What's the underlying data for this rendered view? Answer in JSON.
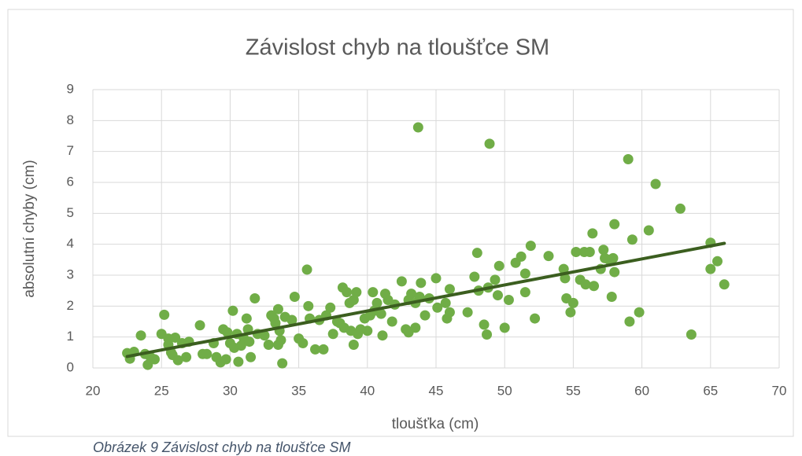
{
  "chart_data": {
    "type": "scatter",
    "title": "Závislost chyb na tloušťce SM",
    "xlabel": "tloušťka (cm)",
    "ylabel": "absolutní chyby (cm)",
    "xlim": [
      20,
      70
    ],
    "xticks": [
      20,
      25,
      30,
      35,
      40,
      45,
      50,
      55,
      60,
      65,
      70
    ],
    "ylim": [
      0,
      9
    ],
    "yticks": [
      0,
      1,
      2,
      3,
      4,
      5,
      6,
      7,
      8,
      9
    ],
    "grid": true,
    "color": "#70ad47",
    "x": [
      22.5,
      22.7,
      23,
      23.5,
      23.8,
      24,
      24.2,
      24.5,
      25,
      25.2,
      25.5,
      25.5,
      25.7,
      25.8,
      26,
      26.2,
      26.5,
      26.8,
      27,
      27.8,
      28,
      28.3,
      28.8,
      29,
      29.3,
      29.5,
      29.7,
      29.8,
      30,
      30.2,
      30.3,
      30.5,
      30.6,
      30.8,
      31,
      31.2,
      31.3,
      31.5,
      31.4,
      31.8,
      32,
      32.5,
      32.8,
      33,
      33.2,
      33.3,
      33.5,
      33.5,
      33.6,
      33.7,
      33.8,
      34,
      34.5,
      34.7,
      35,
      35.3,
      35.6,
      35.7,
      35.8,
      36.2,
      36.5,
      36.8,
      37,
      37.3,
      37.5,
      37.8,
      38,
      38.2,
      38.3,
      38.5,
      38.7,
      38.8,
      39,
      39,
      39.2,
      39.3,
      39.5,
      39.8,
      40,
      40.2,
      40.4,
      40.5,
      40.7,
      41,
      41.1,
      41.3,
      41.5,
      41.8,
      42,
      42.5,
      42.8,
      43,
      43,
      43.2,
      43.5,
      43.5,
      43.7,
      43.8,
      43.9,
      44.2,
      44.5,
      45,
      45.1,
      45.7,
      45.8,
      46,
      46,
      47.3,
      47.8,
      48,
      48.1,
      48.5,
      48.7,
      48.8,
      48.9,
      49.3,
      49.5,
      49.6,
      50,
      50.3,
      50.8,
      51.2,
      51.5,
      51.5,
      51.9,
      52.2,
      53.2,
      54.3,
      54.4,
      54.5,
      54.8,
      55,
      55.2,
      55.5,
      55.8,
      55.9,
      56.2,
      56.4,
      56.5,
      57,
      57.2,
      57.3,
      57.6,
      57.8,
      57.9,
      58,
      58,
      59,
      59.1,
      59.3,
      59.8,
      60.5,
      61,
      62.8,
      63.6,
      65,
      65,
      65.5,
      66
    ],
    "values": [
      0.48,
      0.3,
      0.52,
      1.05,
      0.45,
      0.1,
      0.35,
      0.28,
      1.1,
      1.72,
      0.95,
      0.75,
      0.5,
      0.42,
      0.98,
      0.25,
      0.8,
      0.35,
      0.85,
      1.38,
      0.45,
      0.45,
      0.8,
      0.35,
      0.18,
      1.25,
      0.28,
      1.15,
      0.8,
      1.85,
      0.65,
      1.1,
      0.2,
      0.72,
      0.95,
      1.6,
      1.25,
      0.35,
      0.85,
      2.25,
      1.1,
      1.05,
      0.75,
      1.7,
      1.6,
      1.45,
      1.9,
      0.75,
      1.2,
      0.9,
      0.15,
      1.65,
      1.55,
      2.3,
      0.95,
      0.8,
      3.18,
      2,
      1.6,
      0.6,
      1.55,
      0.6,
      1.7,
      1.95,
      1.1,
      1.5,
      1.45,
      2.6,
      1.3,
      2.45,
      2.1,
      1.2,
      0.75,
      2.2,
      2.45,
      1.1,
      1.25,
      1.6,
      1.2,
      1.7,
      2.45,
      1.85,
      2.1,
      1.75,
      1.05,
      2.4,
      2.2,
      1.5,
      2.05,
      2.8,
      1.25,
      2.2,
      1.15,
      2.4,
      1.3,
      2.1,
      7.78,
      2.3,
      2.75,
      1.7,
      2.25,
      2.9,
      1.95,
      2.1,
      1.6,
      1.8,
      2.55,
      1.8,
      2.95,
      3.72,
      2.5,
      1.4,
      1.08,
      2.6,
      7.25,
      2.85,
      2.35,
      3.3,
      1.3,
      2.2,
      3.4,
      3.6,
      3.05,
      2.45,
      3.95,
      1.6,
      3.62,
      3.2,
      2.9,
      2.25,
      1.8,
      2.1,
      3.75,
      2.85,
      3.75,
      2.7,
      3.75,
      4.35,
      2.65,
      3.2,
      3.82,
      3.55,
      3.5,
      2.3,
      3.55,
      3.1,
      4.65,
      6.75,
      1.5,
      4.15,
      1.8,
      4.45,
      5.95,
      5.15,
      1.08,
      4.05,
      3.2,
      3.45,
      2.7
    ],
    "trendline": {
      "x": [
        22.5,
        66
      ],
      "values": [
        0.37,
        4.03
      ],
      "color": "#3b5e1f"
    }
  },
  "caption": "Obrázek 9 Závislost chyb na tloušťce SM"
}
